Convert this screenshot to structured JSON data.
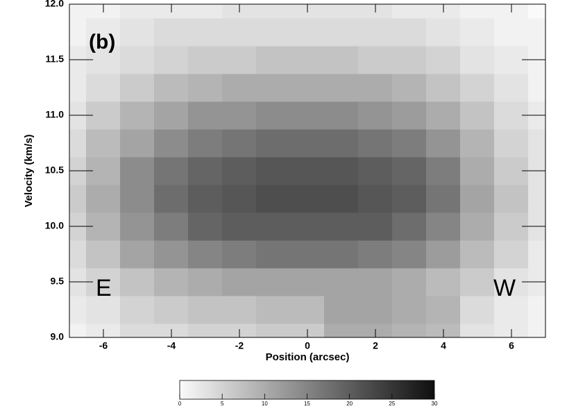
{
  "chart_data": {
    "type": "contour",
    "xlabel": "Position (arcsec)",
    "ylabel": "Velocity (km/s)",
    "annotations": [
      "(b)",
      "E",
      "W"
    ],
    "x": [
      -7,
      -6,
      -5,
      -4,
      -3,
      -2,
      -1,
      0,
      1,
      2,
      3,
      4,
      5,
      6,
      7
    ],
    "y": [
      9.0,
      9.25,
      9.5,
      9.75,
      10.0,
      10.25,
      10.5,
      10.75,
      11.0,
      11.25,
      11.5,
      11.75,
      12.0
    ],
    "z": [
      [
        1,
        2,
        4,
        4,
        5,
        5,
        6,
        6,
        10,
        10,
        9,
        8,
        3,
        2,
        1
      ],
      [
        2,
        3,
        5,
        6,
        7,
        7,
        8,
        8,
        11,
        11,
        10,
        9,
        4,
        2,
        1
      ],
      [
        3,
        5,
        7,
        9,
        10,
        11,
        11,
        11,
        11,
        11,
        10,
        8,
        6,
        3,
        2
      ],
      [
        4,
        7,
        11,
        13,
        15,
        16,
        17,
        17,
        17,
        16,
        15,
        12,
        8,
        5,
        2
      ],
      [
        5,
        9,
        13,
        16,
        19,
        20,
        20,
        20,
        20,
        20,
        18,
        15,
        10,
        6,
        3
      ],
      [
        6,
        10,
        14,
        18,
        20,
        21,
        22,
        22,
        22,
        21,
        20,
        17,
        11,
        7,
        3
      ],
      [
        5,
        9,
        14,
        17,
        19,
        20,
        21,
        21,
        21,
        20,
        19,
        16,
        10,
        6,
        3
      ],
      [
        4,
        8,
        11,
        14,
        16,
        17,
        18,
        18,
        18,
        17,
        16,
        13,
        9,
        5,
        3
      ],
      [
        3,
        6,
        9,
        11,
        13,
        13,
        14,
        14,
        14,
        13,
        12,
        10,
        7,
        4,
        2
      ],
      [
        2,
        4,
        6,
        8,
        9,
        10,
        10,
        10,
        10,
        10,
        9,
        7,
        5,
        3,
        1
      ],
      [
        2,
        3,
        4,
        5,
        6,
        6,
        7,
        7,
        7,
        6,
        6,
        5,
        3,
        2,
        1
      ],
      [
        1,
        2,
        3,
        4,
        4,
        4,
        4,
        4,
        4,
        4,
        4,
        3,
        2,
        1,
        1
      ],
      [
        1,
        1,
        2,
        2,
        2,
        3,
        3,
        3,
        3,
        3,
        2,
        2,
        1,
        1,
        0
      ]
    ],
    "xlim": [
      -7,
      7
    ],
    "ylim": [
      9.0,
      12.0
    ],
    "xticks": [
      -6,
      -4,
      -2,
      0,
      2,
      4,
      6
    ],
    "yticks": [
      {
        "value": 9,
        "label": "9.0"
      },
      9.5,
      {
        "value": 10,
        "label": "10.0"
      },
      10.5,
      {
        "value": 11,
        "label": "11.0"
      },
      11.5,
      {
        "value": 12,
        "label": "12.0"
      }
    ],
    "colorbar": {
      "lim": [
        0,
        30
      ],
      "ticks": [
        0,
        5,
        10,
        15,
        20,
        25,
        30
      ]
    }
  }
}
